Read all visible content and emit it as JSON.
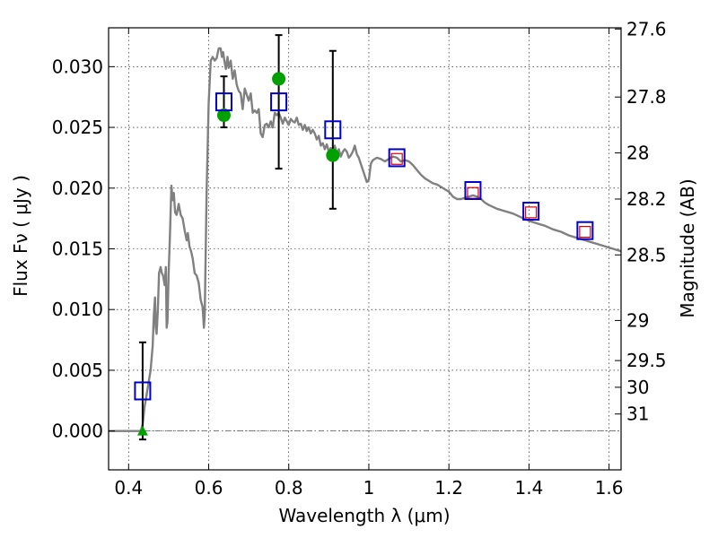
{
  "chart_data": {
    "type": "scatter",
    "xlabel": "Wavelength  λ (μm)",
    "ylabel": "Flux  Fν  ( μJy )",
    "ylabel_right": "Magnitude (AB)",
    "xlim": [
      0.35,
      1.63
    ],
    "ylim": [
      -0.0032,
      0.0332
    ],
    "grid": true,
    "x_ticks": [
      {
        "value": 0.4,
        "label": "0.4"
      },
      {
        "value": 0.6,
        "label": "0.6"
      },
      {
        "value": 0.8,
        "label": "0.8"
      },
      {
        "value": 1.0,
        "label": "1"
      },
      {
        "value": 1.2,
        "label": "1.2"
      },
      {
        "value": 1.4,
        "label": "1.4"
      },
      {
        "value": 1.6,
        "label": "1.6"
      }
    ],
    "y_ticks": [
      {
        "value": 0.0,
        "label": "0.000"
      },
      {
        "value": 0.005,
        "label": "0.005"
      },
      {
        "value": 0.01,
        "label": "0.010"
      },
      {
        "value": 0.015,
        "label": "0.015"
      },
      {
        "value": 0.02,
        "label": "0.020"
      },
      {
        "value": 0.025,
        "label": "0.025"
      },
      {
        "value": 0.03,
        "label": "0.030"
      }
    ],
    "right_ticks": [
      {
        "flux": 0.0331,
        "label": "27.6"
      },
      {
        "flux": 0.0275,
        "label": "27.8"
      },
      {
        "flux": 0.0229,
        "label": "28"
      },
      {
        "flux": 0.0191,
        "label": "28.2"
      },
      {
        "flux": 0.0145,
        "label": "28.5"
      },
      {
        "flux": 0.0091,
        "label": "29"
      },
      {
        "flux": 0.0058,
        "label": "29.5"
      },
      {
        "flux": 0.0036,
        "label": "30"
      },
      {
        "flux": 0.0014,
        "label": "31"
      }
    ],
    "series": [
      {
        "role": "model_spectrum",
        "color": "#808080",
        "points": [
          [
            0.35,
            0.0
          ],
          [
            0.4,
            0.0
          ],
          [
            0.43,
            0.0
          ],
          [
            0.435,
            0.0005
          ],
          [
            0.44,
            0.002
          ],
          [
            0.445,
            0.003
          ],
          [
            0.45,
            0.004
          ],
          [
            0.455,
            0.005
          ],
          [
            0.46,
            0.007
          ],
          [
            0.463,
            0.0095
          ],
          [
            0.466,
            0.011
          ],
          [
            0.468,
            0.0085
          ],
          [
            0.47,
            0.008
          ],
          [
            0.473,
            0.01
          ],
          [
            0.476,
            0.013
          ],
          [
            0.48,
            0.0135
          ],
          [
            0.483,
            0.013
          ],
          [
            0.486,
            0.0128
          ],
          [
            0.49,
            0.012
          ],
          [
            0.493,
            0.0135
          ],
          [
            0.495,
            0.0085
          ],
          [
            0.497,
            0.009
          ],
          [
            0.5,
            0.013
          ],
          [
            0.503,
            0.016
          ],
          [
            0.507,
            0.0202
          ],
          [
            0.51,
            0.019
          ],
          [
            0.513,
            0.0196
          ],
          [
            0.516,
            0.018
          ],
          [
            0.52,
            0.0178
          ],
          [
            0.525,
            0.0187
          ],
          [
            0.53,
            0.0178
          ],
          [
            0.535,
            0.0175
          ],
          [
            0.54,
            0.0165
          ],
          [
            0.545,
            0.0157
          ],
          [
            0.548,
            0.0163
          ],
          [
            0.552,
            0.0152
          ],
          [
            0.556,
            0.0148
          ],
          [
            0.56,
            0.0142
          ],
          [
            0.565,
            0.013
          ],
          [
            0.57,
            0.0128
          ],
          [
            0.575,
            0.0122
          ],
          [
            0.58,
            0.0108
          ],
          [
            0.585,
            0.0102
          ],
          [
            0.588,
            0.0085
          ],
          [
            0.59,
            0.0095
          ],
          [
            0.595,
            0.02
          ],
          [
            0.6,
            0.027
          ],
          [
            0.605,
            0.0305
          ],
          [
            0.61,
            0.0308
          ],
          [
            0.615,
            0.0305
          ],
          [
            0.62,
            0.0307
          ],
          [
            0.625,
            0.0315
          ],
          [
            0.63,
            0.0315
          ],
          [
            0.633,
            0.0308
          ],
          [
            0.636,
            0.0312
          ],
          [
            0.64,
            0.0303
          ],
          [
            0.643,
            0.0298
          ],
          [
            0.647,
            0.0308
          ],
          [
            0.65,
            0.0299
          ],
          [
            0.655,
            0.0305
          ],
          [
            0.66,
            0.029
          ],
          [
            0.665,
            0.0297
          ],
          [
            0.67,
            0.0285
          ],
          [
            0.675,
            0.028
          ],
          [
            0.68,
            0.0278
          ],
          [
            0.685,
            0.0265
          ],
          [
            0.69,
            0.0282
          ],
          [
            0.695,
            0.0277
          ],
          [
            0.7,
            0.0272
          ],
          [
            0.705,
            0.0278
          ],
          [
            0.71,
            0.0262
          ],
          [
            0.715,
            0.0264
          ],
          [
            0.72,
            0.0262
          ],
          [
            0.725,
            0.0265
          ],
          [
            0.73,
            0.0245
          ],
          [
            0.735,
            0.0242
          ],
          [
            0.74,
            0.0252
          ],
          [
            0.745,
            0.0253
          ],
          [
            0.75,
            0.025
          ],
          [
            0.755,
            0.0255
          ],
          [
            0.76,
            0.025
          ],
          [
            0.765,
            0.0262
          ],
          [
            0.77,
            0.026
          ],
          [
            0.775,
            0.0262
          ],
          [
            0.78,
            0.0258
          ],
          [
            0.785,
            0.0253
          ],
          [
            0.79,
            0.0258
          ],
          [
            0.795,
            0.0255
          ],
          [
            0.8,
            0.0252
          ],
          [
            0.805,
            0.0257
          ],
          [
            0.81,
            0.0255
          ],
          [
            0.815,
            0.0254
          ],
          [
            0.82,
            0.0258
          ],
          [
            0.825,
            0.0252
          ],
          [
            0.83,
            0.0253
          ],
          [
            0.835,
            0.0248
          ],
          [
            0.84,
            0.0252
          ],
          [
            0.845,
            0.0247
          ],
          [
            0.85,
            0.025
          ],
          [
            0.855,
            0.0245
          ],
          [
            0.86,
            0.0248
          ],
          [
            0.865,
            0.0245
          ],
          [
            0.87,
            0.024
          ],
          [
            0.875,
            0.0243
          ],
          [
            0.88,
            0.0235
          ],
          [
            0.885,
            0.0237
          ],
          [
            0.89,
            0.0232
          ],
          [
            0.895,
            0.0236
          ],
          [
            0.9,
            0.023
          ],
          [
            0.905,
            0.0233
          ],
          [
            0.91,
            0.0225
          ],
          [
            0.915,
            0.0235
          ],
          [
            0.92,
            0.0228
          ],
          [
            0.925,
            0.0232
          ],
          [
            0.93,
            0.0226
          ],
          [
            0.935,
            0.023
          ],
          [
            0.94,
            0.0232
          ],
          [
            0.945,
            0.023
          ],
          [
            0.95,
            0.0225
          ],
          [
            0.955,
            0.0227
          ],
          [
            0.96,
            0.023
          ],
          [
            0.965,
            0.0235
          ],
          [
            0.97,
            0.0228
          ],
          [
            0.975,
            0.0225
          ],
          [
            0.98,
            0.022
          ],
          [
            0.985,
            0.0215
          ],
          [
            0.99,
            0.021
          ],
          [
            0.995,
            0.0205
          ],
          [
            1.0,
            0.0207
          ],
          [
            1.005,
            0.022
          ],
          [
            1.01,
            0.0223
          ],
          [
            1.02,
            0.0225
          ],
          [
            1.03,
            0.0224
          ],
          [
            1.04,
            0.0222
          ],
          [
            1.05,
            0.0224
          ],
          [
            1.06,
            0.0226
          ],
          [
            1.07,
            0.0225
          ],
          [
            1.08,
            0.0222
          ],
          [
            1.09,
            0.0223
          ],
          [
            1.1,
            0.0222
          ],
          [
            1.11,
            0.0219
          ],
          [
            1.12,
            0.0215
          ],
          [
            1.13,
            0.0211
          ],
          [
            1.14,
            0.0208
          ],
          [
            1.15,
            0.0206
          ],
          [
            1.16,
            0.0204
          ],
          [
            1.17,
            0.0203
          ],
          [
            1.18,
            0.0201
          ],
          [
            1.19,
            0.0199
          ],
          [
            1.2,
            0.0197
          ],
          [
            1.21,
            0.0193
          ],
          [
            1.22,
            0.0191
          ],
          [
            1.23,
            0.0191
          ],
          [
            1.24,
            0.0192
          ],
          [
            1.25,
            0.0193
          ],
          [
            1.26,
            0.0194
          ],
          [
            1.27,
            0.0193
          ],
          [
            1.28,
            0.0191
          ],
          [
            1.29,
            0.0188
          ],
          [
            1.3,
            0.0186
          ],
          [
            1.32,
            0.0183
          ],
          [
            1.34,
            0.0181
          ],
          [
            1.36,
            0.0179
          ],
          [
            1.38,
            0.0176
          ],
          [
            1.4,
            0.0173
          ],
          [
            1.42,
            0.0171
          ],
          [
            1.44,
            0.0169
          ],
          [
            1.46,
            0.0166
          ],
          [
            1.48,
            0.0164
          ],
          [
            1.5,
            0.0161
          ],
          [
            1.52,
            0.0159
          ],
          [
            1.54,
            0.0157
          ],
          [
            1.56,
            0.0155
          ],
          [
            1.58,
            0.0153
          ],
          [
            1.6,
            0.0151
          ],
          [
            1.63,
            0.0148
          ]
        ]
      },
      {
        "role": "observed_fluxes",
        "marker": "blue_open_square",
        "color": "#0000cc",
        "points": [
          {
            "x": 0.435,
            "y": 0.0033,
            "err": 0.004
          },
          {
            "x": 0.638,
            "y": 0.0271,
            "err": 0.0021
          },
          {
            "x": 0.775,
            "y": 0.0271,
            "err": 0.0055
          },
          {
            "x": 0.91,
            "y": 0.0248,
            "err": 0.0065
          },
          {
            "x": 1.07,
            "y": 0.0225
          },
          {
            "x": 1.26,
            "y": 0.0198
          },
          {
            "x": 1.405,
            "y": 0.0181
          },
          {
            "x": 1.54,
            "y": 0.0165
          }
        ]
      },
      {
        "role": "model_points_green",
        "marker": "green_circle",
        "color": "#00a000",
        "points": [
          {
            "x": 0.638,
            "y": 0.026
          },
          {
            "x": 0.775,
            "y": 0.029
          },
          {
            "x": 0.91,
            "y": 0.0227
          }
        ]
      },
      {
        "role": "model_points_red",
        "marker": "red_open_square",
        "color": "#dd0000",
        "points": [
          {
            "x": 1.07,
            "y": 0.0224
          },
          {
            "x": 1.26,
            "y": 0.0196
          },
          {
            "x": 1.405,
            "y": 0.018
          },
          {
            "x": 1.54,
            "y": 0.0164
          }
        ]
      },
      {
        "role": "upper_limit_green",
        "marker": "green_triangle",
        "color": "#00a000",
        "points": [
          {
            "x": 0.435,
            "y": 0.0
          }
        ]
      }
    ]
  }
}
